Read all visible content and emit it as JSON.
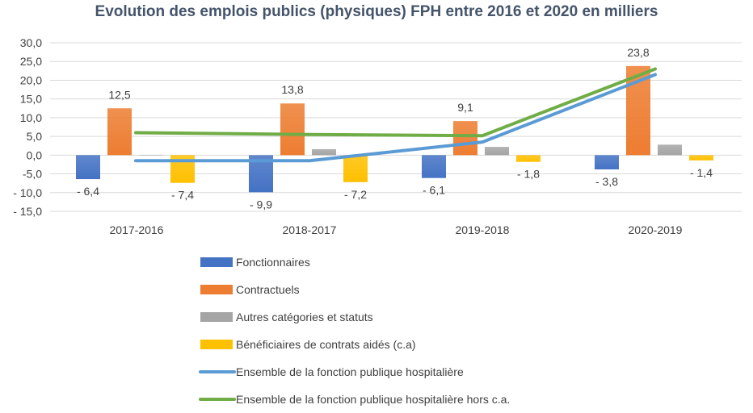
{
  "chart_data": {
    "type": "bar",
    "title": "Evolution des emplois publics (physiques) FPH entre 2016 et 2020 en milliers",
    "categories": [
      "2017-2016",
      "2018-2017",
      "2019-2018",
      "2020-2019"
    ],
    "ylim": [
      -15,
      30
    ],
    "yticks": [
      30,
      25,
      20,
      15,
      10,
      5,
      0,
      -5,
      -10,
      -15
    ],
    "ytick_labels": [
      "30,0",
      "25,0",
      "20,0",
      "15,0",
      "10,0",
      "5,0",
      "0,0",
      "-5,0",
      "- 10,0",
      "- 15,0"
    ],
    "grid": true,
    "legend_position": "bottom",
    "series": [
      {
        "name": "Fonctionnaires",
        "kind": "bar",
        "color": "#4472c4",
        "values": [
          -6.4,
          -9.9,
          -6.1,
          -3.8
        ],
        "labels": [
          "- 6,4",
          "- 9,9",
          "- 6,1",
          "- 3,8"
        ]
      },
      {
        "name": "Contractuels",
        "kind": "bar",
        "color": "#ed7d31",
        "values": [
          12.5,
          13.8,
          9.1,
          23.8
        ],
        "labels": [
          "12,5",
          "13,8",
          "9,1",
          "23,8"
        ]
      },
      {
        "name": "Autres catégories et statuts",
        "kind": "bar",
        "color": "#a5a5a5",
        "values": [
          0,
          1.6,
          2.2,
          2.8
        ],
        "labels": [
          "",
          "",
          "",
          ""
        ]
      },
      {
        "name": "Bénéficiaires de contrats aidés (c.a)",
        "kind": "bar",
        "color": "#ffc000",
        "values": [
          -7.4,
          -7.2,
          -1.8,
          -1.4
        ],
        "labels": [
          "- 7,4",
          "- 7,2",
          "- 1,8",
          "- 1,4"
        ]
      },
      {
        "name": "Ensemble de la fonction publique hospitalière",
        "kind": "line",
        "color": "#5b9bd5",
        "values": [
          -1.5,
          -1.5,
          3.5,
          21.5
        ],
        "labels": [
          "",
          "",
          "",
          ""
        ]
      },
      {
        "name": "Ensemble de la fonction publique hospitalière hors c.a.",
        "kind": "line",
        "color": "#70ad47",
        "values": [
          6.0,
          5.5,
          5.2,
          23.0
        ],
        "labels": [
          "",
          "",
          "",
          ""
        ]
      }
    ]
  }
}
